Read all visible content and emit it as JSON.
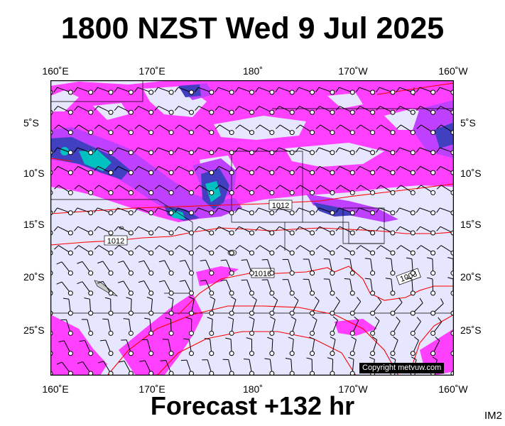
{
  "header": {
    "title": "1800 NZST Wed 9 Jul 2025"
  },
  "footer": {
    "forecast": "Forecast +132 hr",
    "code": "IM2"
  },
  "axes": {
    "lon_top": [
      "160˚E",
      "170˚E",
      "180˚",
      "170˚W",
      "160˚W"
    ],
    "lon_bottom": [
      "160˚E",
      "170˚E",
      "180˚",
      "170˚W",
      "160˚W"
    ],
    "lat_left": [
      "5˚S",
      "10˚S",
      "15˚S",
      "20˚S",
      "25˚S"
    ],
    "lat_right": [
      "5˚S",
      "10˚S",
      "15˚S",
      "20˚S",
      "25˚S"
    ]
  },
  "map": {
    "extent": {
      "lon_west": 160,
      "lon_east": 200,
      "lat_north": -1,
      "lat_south": -30
    },
    "copyright": "Copyright metvuw.com",
    "isobar_labels": [
      "1012",
      "1012",
      "1016",
      "1008"
    ],
    "colors": {
      "background": "#e6e6ff",
      "rain_light": "#ff40ff",
      "rain_medium": "#c040ff",
      "rain_heavy": "#4040c0",
      "rain_intense": "#00c0c0",
      "isobar": "#ff0000"
    }
  }
}
